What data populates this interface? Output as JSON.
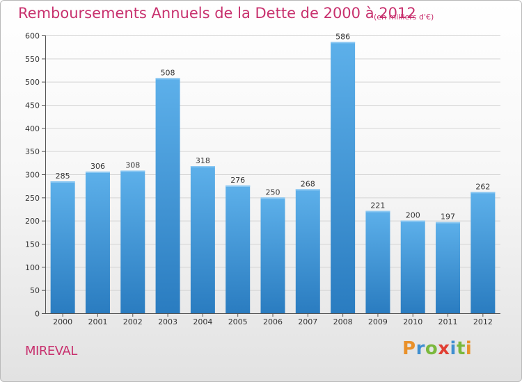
{
  "title": "Remboursements Annuels de la Dette de 2000 à 2012",
  "subtitle": "(en milliers d'€)",
  "city": "MIREVAL",
  "brand": {
    "text": "Proxiti",
    "letters": [
      "P",
      "r",
      "o",
      "x",
      "i",
      "t",
      "i"
    ],
    "colors": [
      "#e9912a",
      "#3f8fd0",
      "#7ab83c",
      "#e13f33",
      "#3f8fd0",
      "#7ab83c",
      "#e9912a"
    ]
  },
  "chart_data": {
    "type": "bar",
    "title": "Remboursements Annuels de la Dette de 2000 à 2012",
    "xlabel": "",
    "ylabel": "",
    "categories": [
      "2000",
      "2001",
      "2002",
      "2003",
      "2004",
      "2005",
      "2006",
      "2007",
      "2008",
      "2009",
      "2010",
      "2011",
      "2012"
    ],
    "values": [
      285,
      306,
      308,
      508,
      318,
      276,
      250,
      268,
      586,
      221,
      200,
      197,
      262
    ],
    "ylim": [
      0,
      600
    ],
    "yticks": [
      0,
      50,
      100,
      150,
      200,
      250,
      300,
      350,
      400,
      450,
      500,
      550,
      600
    ],
    "grid": true,
    "bar_color": "#4da3e0",
    "title_color": "#c8316e"
  }
}
